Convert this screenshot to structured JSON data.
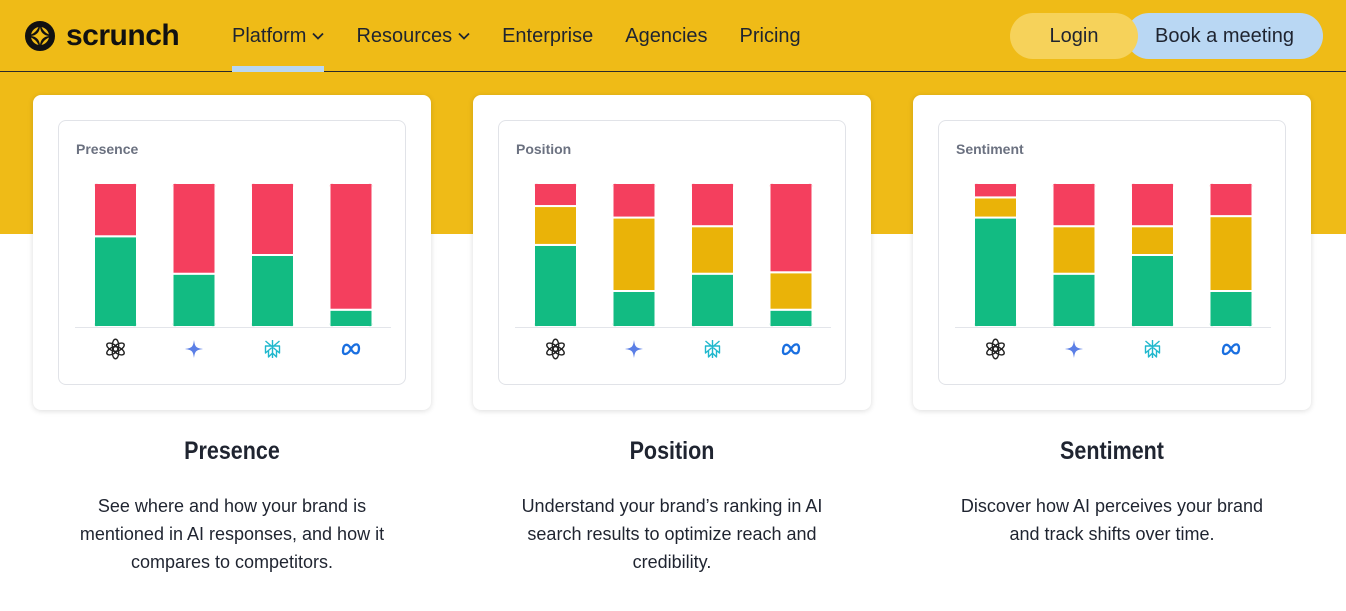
{
  "nav": {
    "logo_text": "scrunch",
    "links": [
      {
        "label": "Platform",
        "has_dropdown": true,
        "active": true
      },
      {
        "label": "Resources",
        "has_dropdown": true,
        "active": false
      },
      {
        "label": "Enterprise",
        "has_dropdown": false,
        "active": false
      },
      {
        "label": "Agencies",
        "has_dropdown": false,
        "active": false
      },
      {
        "label": "Pricing",
        "has_dropdown": false,
        "active": false
      }
    ],
    "login_label": "Login",
    "book_label": "Book a meeting"
  },
  "colors": {
    "background_yellow": "#efbb17",
    "green": "#12bb82",
    "yellow": "#eab308",
    "red": "#f43f5e",
    "button_login": "#f6d25a",
    "button_book": "#b9d7f3"
  },
  "platform_icons": [
    "chatgpt-icon",
    "gemini-icon",
    "perplexity-icon",
    "meta-icon"
  ],
  "cards": [
    {
      "label": "Presence",
      "title": "Presence",
      "description_lines": [
        "See where and how your brand is",
        "mentioned in AI responses, and how it",
        "compares to competitors."
      ],
      "chart_data": {
        "type": "bar",
        "stacked": true,
        "categories": [
          "chatgpt-icon",
          "gemini-icon",
          "perplexity-icon",
          "meta-icon"
        ],
        "series": [
          {
            "color": "#12bb82",
            "values": [
              63,
              37,
              50,
              12
            ]
          },
          {
            "color": "#f43f5e",
            "values": [
              37,
              63,
              50,
              88
            ]
          }
        ],
        "ylim": [
          0,
          100
        ]
      }
    },
    {
      "label": "Position",
      "title": "Position",
      "description_lines": [
        "Understand your brand’s ranking in AI",
        "search results to optimize reach and",
        "credibility."
      ],
      "chart_data": {
        "type": "bar",
        "stacked": true,
        "categories": [
          "chatgpt-icon",
          "gemini-icon",
          "perplexity-icon",
          "meta-icon"
        ],
        "series": [
          {
            "color": "#12bb82",
            "values": [
              57,
              25,
              37,
              12
            ]
          },
          {
            "color": "#eab308",
            "values": [
              27,
              51,
              33,
              26
            ]
          },
          {
            "color": "#f43f5e",
            "values": [
              16,
              24,
              30,
              62
            ]
          }
        ],
        "ylim": [
          0,
          100
        ]
      }
    },
    {
      "label": "Sentiment",
      "title": "Sentiment",
      "description_lines": [
        "Discover how AI perceives your brand",
        "and track shifts over time."
      ],
      "chart_data": {
        "type": "bar",
        "stacked": true,
        "categories": [
          "chatgpt-icon",
          "gemini-icon",
          "perplexity-icon",
          "meta-icon"
        ],
        "series": [
          {
            "color": "#12bb82",
            "values": [
              76,
              37,
              50,
              25
            ]
          },
          {
            "color": "#eab308",
            "values": [
              14,
              33,
              20,
              52
            ]
          },
          {
            "color": "#f43f5e",
            "values": [
              10,
              30,
              30,
              23
            ]
          }
        ],
        "ylim": [
          0,
          100
        ]
      }
    }
  ]
}
